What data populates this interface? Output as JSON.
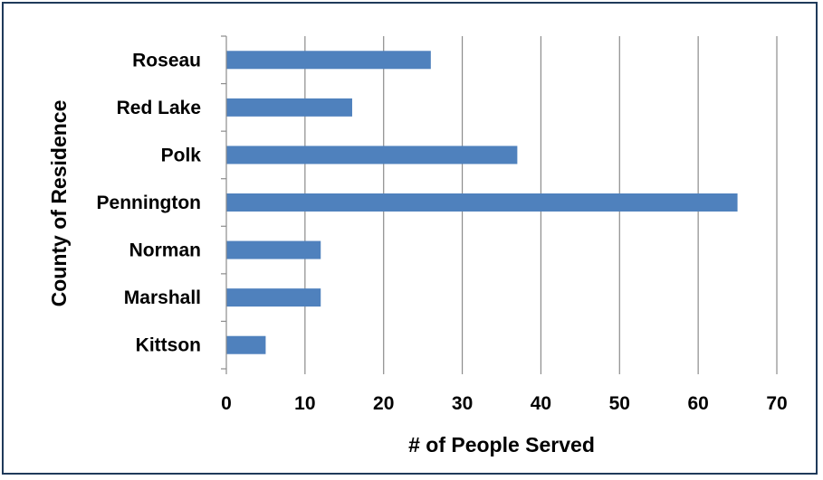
{
  "chart_data": {
    "type": "bar",
    "orientation": "horizontal",
    "categories": [
      "Roseau",
      "Red Lake",
      "Polk",
      "Pennington",
      "Norman",
      "Marshall",
      "Kittson"
    ],
    "values": [
      26,
      16,
      37,
      65,
      12,
      12,
      5
    ],
    "xlabel": "# of People Served",
    "ylabel": "County of Residence",
    "xlim": [
      0,
      70
    ],
    "xticks": [
      "0",
      "10",
      "20",
      "30",
      "40",
      "50",
      "60",
      "70"
    ],
    "grid": "vertical",
    "legend": "none",
    "bar_color": "#4f81bd",
    "border_color": "#1f3a5a"
  }
}
